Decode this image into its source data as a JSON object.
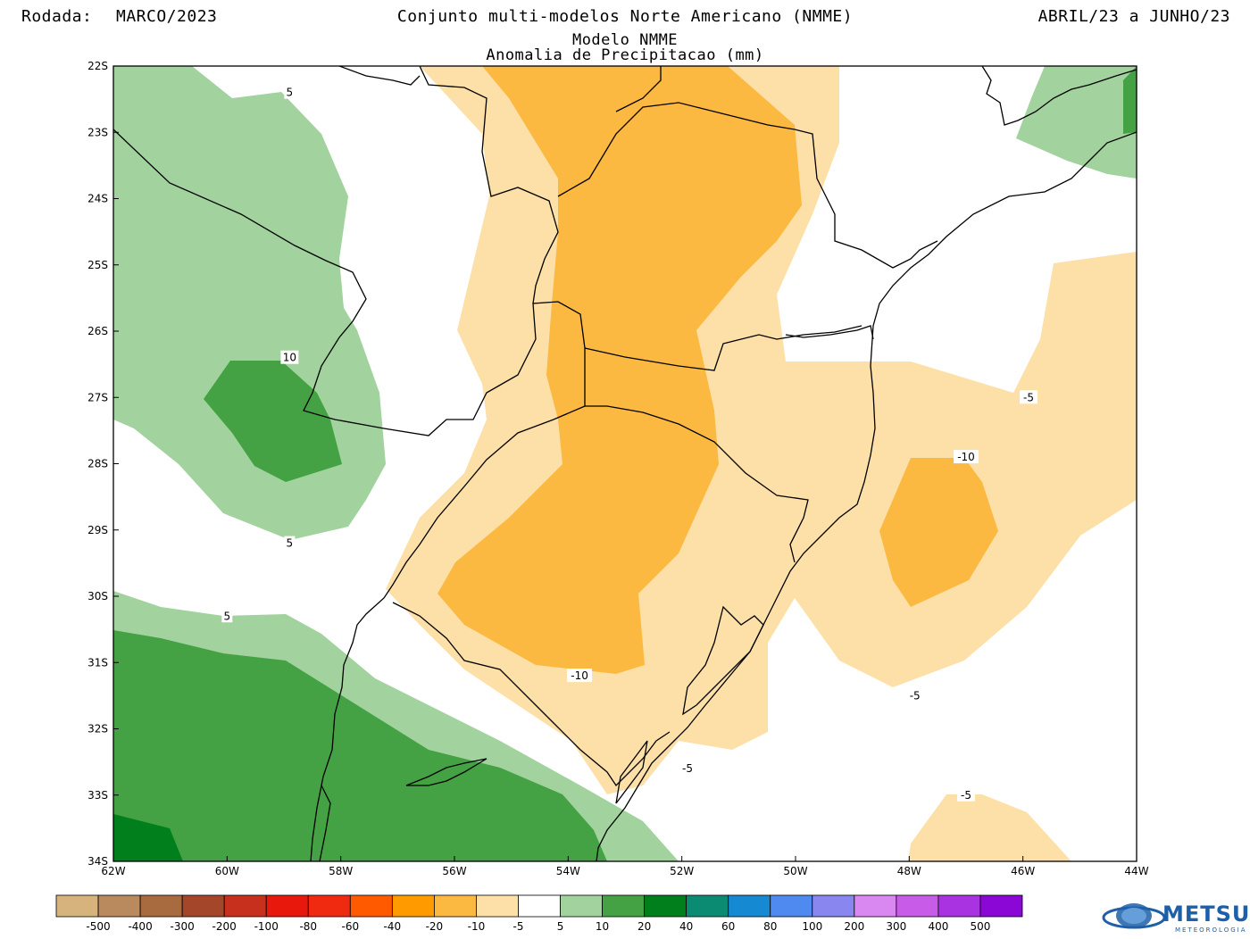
{
  "header": {
    "rodada_label": "Rodada:",
    "rodada_value": "MARCO/2023",
    "title": "Conjunto multi-modelos Norte Americano (NMME)",
    "model": "Modelo NMME",
    "variable": "Anomalia de Precipitacao (mm)",
    "period": "ABRIL/23 a JUNHO/23"
  },
  "map": {
    "lon_range": [
      -62,
      -44
    ],
    "lat_range": [
      -34,
      -22
    ],
    "x_ticks": [
      "62W",
      "60W",
      "58W",
      "56W",
      "54W",
      "52W",
      "50W",
      "48W",
      "46W",
      "44W"
    ],
    "y_ticks": [
      "22S",
      "23S",
      "24S",
      "25S",
      "26S",
      "27S",
      "28S",
      "29S",
      "30S",
      "31S",
      "32S",
      "33S",
      "34S"
    ],
    "contour_labels": [
      {
        "text": "5",
        "lon": -58.9,
        "lat": -22.4
      },
      {
        "text": "10",
        "lon": -58.9,
        "lat": -26.4
      },
      {
        "text": "5",
        "lon": -58.9,
        "lat": -29.2
      },
      {
        "text": "5",
        "lon": -60.0,
        "lat": -30.3
      },
      {
        "text": "-10",
        "lon": -53.8,
        "lat": -31.2
      },
      {
        "text": "-5",
        "lon": -51.9,
        "lat": -32.6
      },
      {
        "text": "-5",
        "lon": -45.9,
        "lat": -27.0
      },
      {
        "text": "-10",
        "lon": -47.0,
        "lat": -27.9
      },
      {
        "text": "-5",
        "lon": -47.9,
        "lat": -31.5
      },
      {
        "text": "-5",
        "lon": -47.0,
        "lat": -33.0
      }
    ]
  },
  "colorbar": {
    "colors": [
      "#d6b27c",
      "#b98a5e",
      "#a86a3f",
      "#a4462a",
      "#c8301e",
      "#e8180d",
      "#f02a10",
      "#ff5a00",
      "#ff9a00",
      "#fbb942",
      "#fde0a8",
      "#ffffff",
      "#a2d29e",
      "#44a244",
      "#007f1c",
      "#0c8b73",
      "#1589d2",
      "#4f8af0",
      "#8a86f0",
      "#d888f0",
      "#c85be8",
      "#a933e0",
      "#8b07d6"
    ],
    "labels": [
      "-500",
      "-400",
      "-300",
      "-200",
      "-100",
      "-80",
      "-60",
      "-40",
      "-20",
      "-10",
      "-5",
      "5",
      "10",
      "20",
      "40",
      "60",
      "80",
      "100",
      "200",
      "300",
      "400",
      "500"
    ]
  },
  "shading_colors": {
    "dry_light": "#fde0a8",
    "dry_mid": "#fbb942",
    "wet_light": "#a2d29e",
    "wet_mid": "#44a244",
    "wet_dark": "#007f1c"
  },
  "logo": {
    "name": "METSUL",
    "sub": "METEOROLOGIA",
    "icon": "globe-icon"
  }
}
